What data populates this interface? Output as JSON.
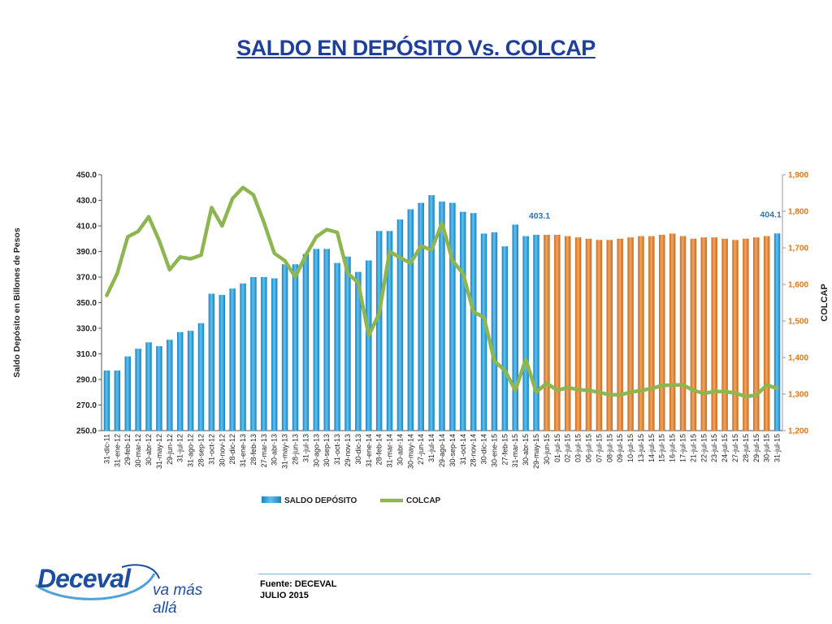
{
  "page": {
    "title": "SALDO EN DEPÓSITO Vs. COLCAP"
  },
  "footer": {
    "source": "Fuente: DECEVAL",
    "date": "JULIO 2015"
  },
  "logo": {
    "text": "Deceval",
    "slogan": "va más allá"
  },
  "colors": {
    "title": "#1f3f9c",
    "bars_monthly": "#2e9fd6",
    "bars_daily": "#e0843a",
    "colcap_line": "#8db650",
    "right_axis": "#d6781f",
    "annotation": "#2e75b6"
  },
  "chart_data": {
    "type": "bar",
    "ylabel": "Saldo Depósito en Billones de Pesos",
    "y2label": "COLCAP",
    "ylim": [
      250,
      450
    ],
    "y2lim": [
      1200,
      1900
    ],
    "yticks": [
      "250.0",
      "270.0",
      "290.0",
      "310.0",
      "330.0",
      "350.0",
      "370.0",
      "390.0",
      "410.0",
      "430.0",
      "450.0"
    ],
    "y2ticks": [
      "1,200",
      "1,300",
      "1,400",
      "1,500",
      "1,600",
      "1,700",
      "1,800",
      "1,900"
    ],
    "legend": {
      "placement": "bottom",
      "items": [
        "SALDO DEPÓSITO",
        "COLCAP"
      ]
    },
    "categories": [
      "31-dic-11",
      "31-ene-12",
      "29-feb-12",
      "30-mar-12",
      "30-abr-12",
      "31-may-12",
      "29-jun-12",
      "31-jul-12",
      "31-ago-12",
      "28-sep-12",
      "31-oct-12",
      "30-nov-12",
      "28-dic-12",
      "31-ene-13",
      "28-feb-13",
      "27-mar-13",
      "30-abr-13",
      "31-may-13",
      "28-jun-13",
      "31-jul-13",
      "30-ago-13",
      "30-sep-13",
      "31-oct-13",
      "29-nov-13",
      "30-dic-13",
      "31-ene-14",
      "28-feb-14",
      "31-mar-14",
      "30-abr-14",
      "30-may-14",
      "27-jun-14",
      "31-jul-14",
      "29-ago-14",
      "30-sep-14",
      "31-oct-14",
      "28-nov-14",
      "30-dic-14",
      "30-ene-15",
      "27-feb-15",
      "31-mar-15",
      "30-abr-15",
      "29-may-15",
      "30-jun-15",
      "01-jul-15",
      "02-jul-15",
      "03-jul-15",
      "06-jul-15",
      "07-jul-15",
      "08-jul-15",
      "09-jul-15",
      "10-jul-15",
      "13-jul-15",
      "14-jul-15",
      "15-jul-15",
      "16-jul-15",
      "17-jul-15",
      "21-jul-15",
      "22-jul-15",
      "23-jul-15",
      "24-jul-15",
      "27-jul-15",
      "28-jul-15",
      "29-jul-15",
      "30-jul-15",
      "31-jul-15"
    ],
    "series": [
      {
        "name": "SALDO DEPÓSITO",
        "axis": "left",
        "values": [
          297,
          297,
          308,
          314,
          319,
          316,
          321,
          327,
          328,
          334,
          357,
          356,
          361,
          365,
          370,
          370,
          369,
          380,
          380,
          388,
          392,
          392,
          381,
          386,
          374,
          383,
          406,
          406,
          415,
          423,
          428,
          434,
          429,
          428,
          421,
          420,
          404,
          405,
          394,
          411,
          402,
          403,
          403,
          403,
          402,
          401,
          400,
          399,
          399,
          400,
          401,
          402,
          402,
          403,
          404,
          402,
          400,
          401,
          401,
          400,
          399,
          400,
          401,
          402,
          404.1
        ]
      },
      {
        "name": "COLCAP",
        "axis": "right",
        "values": [
          1570,
          1630,
          1730,
          1745,
          1785,
          1720,
          1640,
          1675,
          1670,
          1680,
          1810,
          1760,
          1835,
          1865,
          1845,
          1770,
          1685,
          1665,
          1620,
          1680,
          1730,
          1750,
          1742,
          1630,
          1605,
          1460,
          1520,
          1690,
          1673,
          1658,
          1705,
          1694,
          1768,
          1665,
          1630,
          1525,
          1510,
          1390,
          1365,
          1310,
          1395,
          1305,
          1330,
          1310,
          1318,
          1312,
          1310,
          1305,
          1298,
          1298,
          1305,
          1310,
          1315,
          1323,
          1325,
          1325,
          1310,
          1302,
          1307,
          1307,
          1303,
          1293,
          1297,
          1325,
          1315
        ]
      }
    ],
    "daily_start_index": 42,
    "annotations": [
      {
        "text": "403.1",
        "category": "29-may-15"
      },
      {
        "text": "404.1",
        "category": "31-jul-15"
      }
    ]
  }
}
